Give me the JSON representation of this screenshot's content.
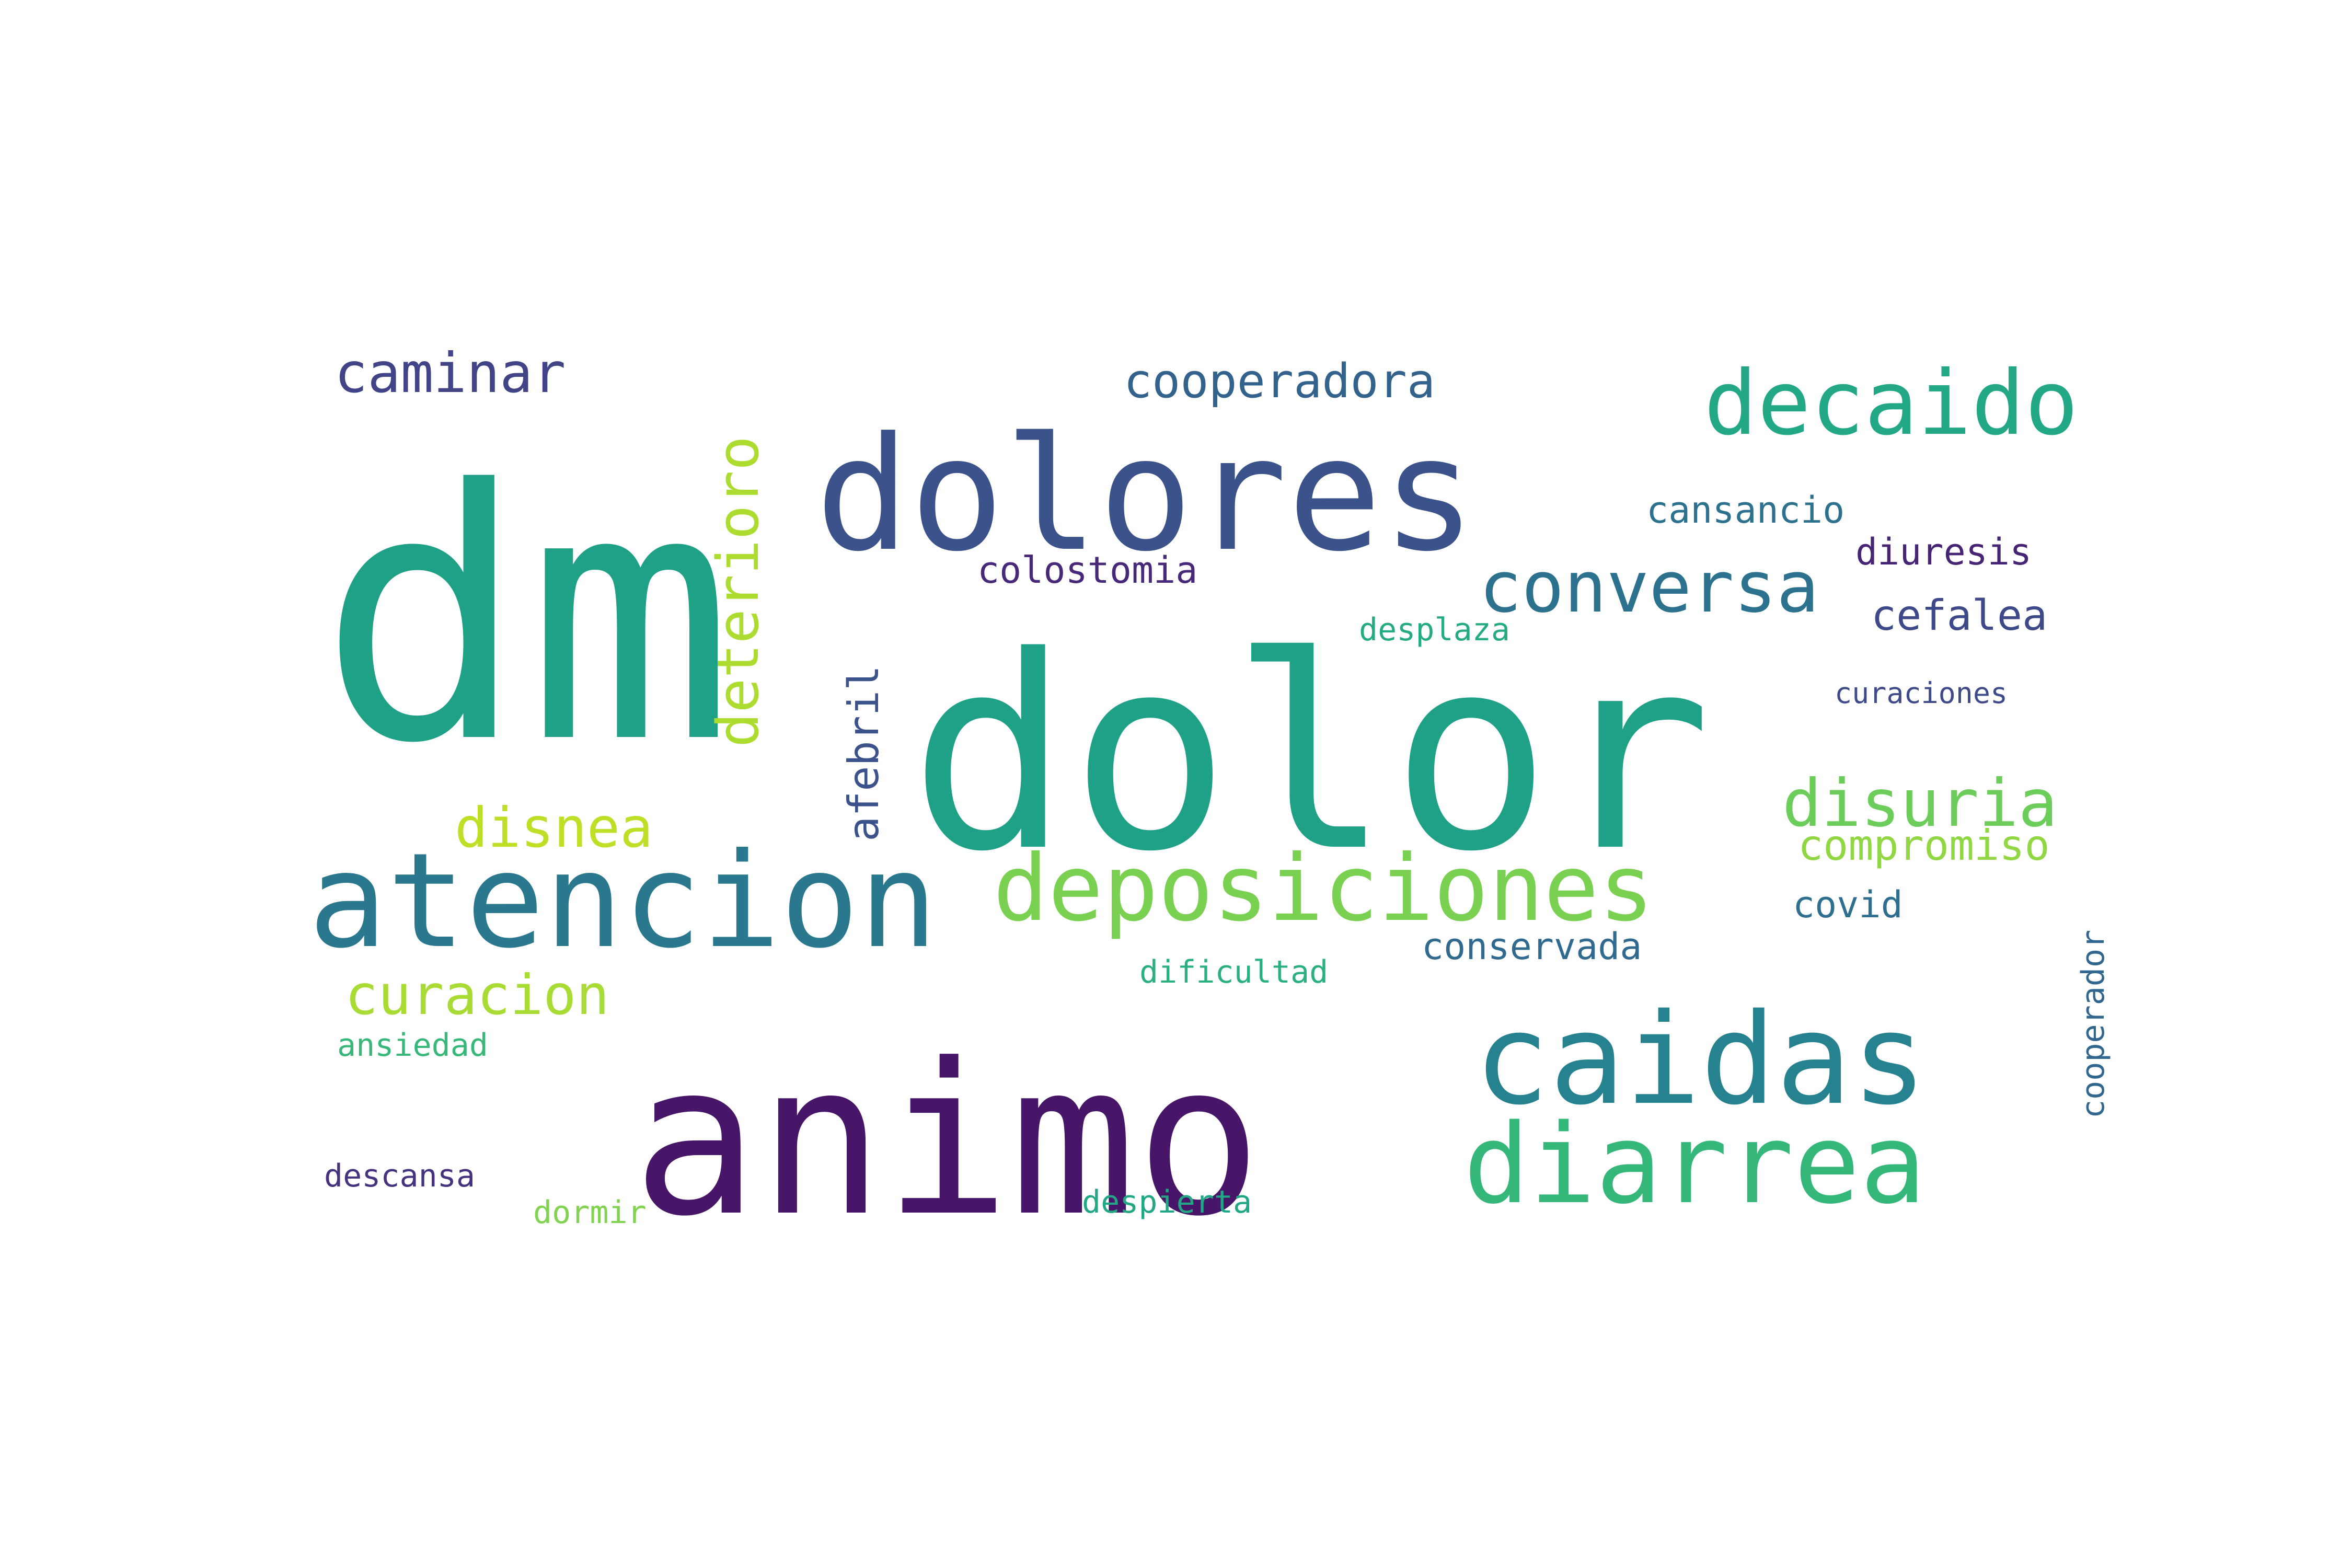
{
  "words": [
    {
      "text": "dm",
      "color": "#1fa187"
    },
    {
      "text": "dolor",
      "color": "#1fa187"
    },
    {
      "text": "dolores",
      "color": "#3b528b"
    },
    {
      "text": "animo",
      "color": "#481668"
    },
    {
      "text": "atencion",
      "color": "#2a788e"
    },
    {
      "text": "caidas",
      "color": "#26828e"
    },
    {
      "text": "diarrea",
      "color": "#35b779"
    },
    {
      "text": "deposiciones",
      "color": "#7ad151"
    },
    {
      "text": "decaido",
      "color": "#22a884"
    },
    {
      "text": "conversa",
      "color": "#2c728e"
    },
    {
      "text": "disuria",
      "color": "#6ccd5a"
    },
    {
      "text": "caminar",
      "color": "#414487"
    },
    {
      "text": "cooperadora",
      "color": "#33638d"
    },
    {
      "text": "deterioro",
      "color": "#addc30"
    },
    {
      "text": "disnea",
      "color": "#bddf26"
    },
    {
      "text": "curacion",
      "color": "#a8db34"
    },
    {
      "text": "afebril",
      "color": "#3b528b"
    },
    {
      "text": "cefalea",
      "color": "#3e4989"
    },
    {
      "text": "compromiso",
      "color": "#90d743"
    },
    {
      "text": "cansancio",
      "color": "#2c728e"
    },
    {
      "text": "colostomia",
      "color": "#482878"
    },
    {
      "text": "diuresis",
      "color": "#482475"
    },
    {
      "text": "desplaza",
      "color": "#25ab82"
    },
    {
      "text": "curaciones",
      "color": "#3e4a89"
    },
    {
      "text": "covid",
      "color": "#2e6e8e"
    },
    {
      "text": "conservada",
      "color": "#306a8e"
    },
    {
      "text": "dificultad",
      "color": "#2ab07f"
    },
    {
      "text": "cooperador",
      "color": "#31668e"
    },
    {
      "text": "ansiedad",
      "color": "#37b878"
    },
    {
      "text": "descansa",
      "color": "#46327e"
    },
    {
      "text": "dormir",
      "color": "#7fd34e"
    },
    {
      "text": "despierta",
      "color": "#22a785"
    }
  ]
}
